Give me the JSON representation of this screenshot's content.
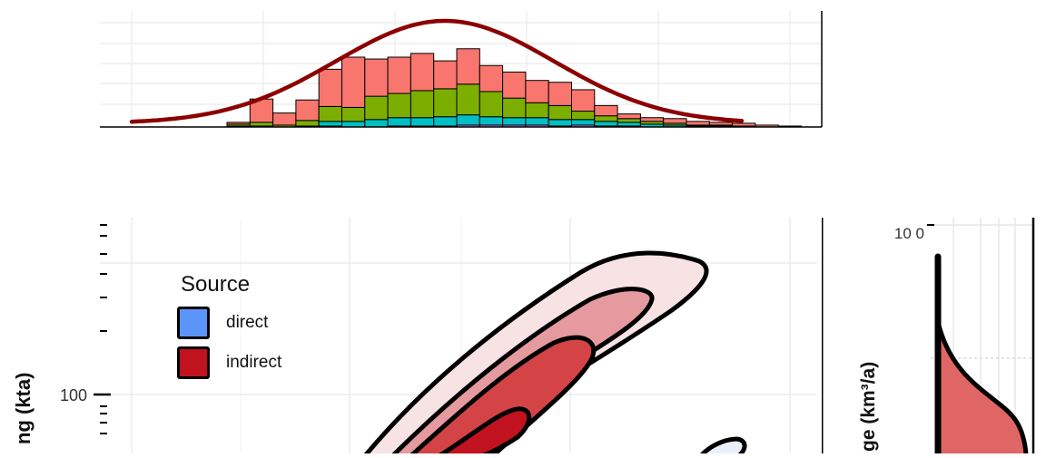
{
  "chart_data": [
    {
      "type": "bar",
      "panel": "top-histogram",
      "stacked": true,
      "title": "",
      "xlabel": "",
      "ylabel": "",
      "grid": true,
      "colors": [
        "#C77CFF",
        "#00BFC4",
        "#7CAE00",
        "#F8766D"
      ],
      "series": [
        {
          "values": [
            0,
            0,
            0,
            0,
            1,
            0,
            0,
            1,
            1,
            1,
            2,
            2,
            2,
            2,
            1,
            2,
            1,
            1,
            0,
            0,
            0,
            0,
            0,
            0,
            0,
            0,
            0
          ]
        },
        {
          "values": [
            1,
            1,
            0,
            1,
            5,
            6,
            8,
            9,
            9,
            10,
            11,
            9,
            8,
            8,
            7,
            6,
            5,
            4,
            3,
            2,
            1,
            1,
            1,
            0,
            0,
            0,
            0
          ]
        },
        {
          "values": [
            2,
            4,
            2,
            6,
            16,
            15,
            25,
            26,
            29,
            30,
            33,
            27,
            21,
            16,
            15,
            9,
            6,
            4,
            3,
            2,
            1,
            1,
            0,
            0,
            0,
            0,
            0
          ]
        },
        {
          "values": [
            2,
            25,
            13,
            22,
            40,
            54,
            40,
            39,
            40,
            30,
            38,
            28,
            28,
            24,
            25,
            23,
            11,
            5,
            4,
            5,
            4,
            3,
            3,
            2,
            1,
            0,
            0
          ]
        }
      ],
      "curve_color": "#8B0000"
    },
    {
      "type": "contour",
      "panel": "main-density",
      "ylabel": "ng (kta)",
      "y_scale": "log",
      "y_ticks": [
        {
          "label": "100",
          "value": 100
        }
      ],
      "grid": true,
      "legend": {
        "title": "Source",
        "position": "top-left",
        "items": [
          {
            "label": "direct",
            "color": "#5B95F9"
          },
          {
            "label": "indirect",
            "color": "#C1121F"
          }
        ]
      }
    },
    {
      "type": "area",
      "panel": "right-marginal",
      "ylabel": "ge (km³/a)",
      "y_ticks": [
        {
          "label": "10 0",
          "value": 10
        }
      ],
      "fill_color": "#E06666",
      "grid": true
    }
  ]
}
